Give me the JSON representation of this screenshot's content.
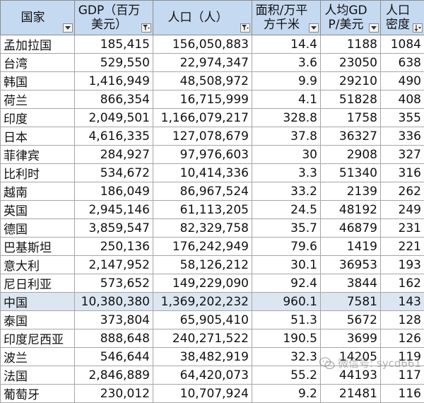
{
  "headers": [
    {
      "label": "国家",
      "filter_icon": "dropdown-arrow-icon"
    },
    {
      "label": "GDP（百万美元）",
      "filter_icon": "filter-icon"
    },
    {
      "label": "人口（人）",
      "filter_icon": "filter-icon"
    },
    {
      "label": "面积/万平方千米",
      "filter_icon": "dropdown-arrow-icon"
    },
    {
      "label": "人均GDP/美元",
      "filter_icon": "dropdown-arrow-icon"
    },
    {
      "label": "人口密度",
      "filter_icon": "sort-descending-icon"
    }
  ],
  "rows": [
    [
      "孟加拉国",
      "185,415",
      "156,050,883",
      "14.4",
      "1188",
      "1084"
    ],
    [
      "台湾",
      "529,550",
      "22,974,347",
      "3.6",
      "23050",
      "638"
    ],
    [
      "韩国",
      "1,416,949",
      "48,508,972",
      "9.9",
      "29210",
      "490"
    ],
    [
      "荷兰",
      "866,354",
      "16,715,999",
      "4.1",
      "51828",
      "408"
    ],
    [
      "印度",
      "2,049,501",
      "1,166,079,217",
      "328.8",
      "1758",
      "355"
    ],
    [
      "日本",
      "4,616,335",
      "127,078,679",
      "37.8",
      "36327",
      "336"
    ],
    [
      "菲律宾",
      "284,927",
      "97,976,603",
      "30",
      "2908",
      "327"
    ],
    [
      "比利时",
      "534,672",
      "10,414,336",
      "3.3",
      "51340",
      "316"
    ],
    [
      "越南",
      "186,049",
      "86,967,524",
      "33.2",
      "2139",
      "262"
    ],
    [
      "英国",
      "2,945,146",
      "61,113,205",
      "24.5",
      "48192",
      "249"
    ],
    [
      "德国",
      "3,859,547",
      "82,329,758",
      "35.7",
      "46879",
      "231"
    ],
    [
      "巴基斯坦",
      "250,136",
      "176,242,949",
      "79.6",
      "1419",
      "221"
    ],
    [
      "意大利",
      "2,147,952",
      "58,126,212",
      "30.1",
      "36953",
      "193"
    ],
    [
      "尼日利亚",
      "573,652",
      "149,229,090",
      "92.4",
      "3844",
      "162"
    ],
    [
      "中国",
      "10,380,380",
      "1,369,202,232",
      "960.1",
      "7581",
      "143"
    ],
    [
      "泰国",
      "373,804",
      "65,905,410",
      "51.3",
      "5672",
      "128"
    ],
    [
      "印度尼西亚",
      "888,648",
      "240,271,522",
      "190.5",
      "3699",
      "126"
    ],
    [
      "波兰",
      "546,644",
      "38,482,919",
      "32.3",
      "14205",
      "119"
    ],
    [
      "法国",
      "2,846,889",
      "64,420,073",
      "55.2",
      "44193",
      "117"
    ],
    [
      "葡萄牙",
      "230,012",
      "10,707,924",
      "9.2",
      "21481",
      "116"
    ]
  ],
  "highlight_row": 14,
  "colors": {
    "header_bg": "#c5d9f1",
    "highlight_bg": "#dce6f1",
    "grid": "#a6a6a6"
  },
  "watermark": {
    "text": "微信号: sycd661",
    "icon": "wechat-icon"
  }
}
